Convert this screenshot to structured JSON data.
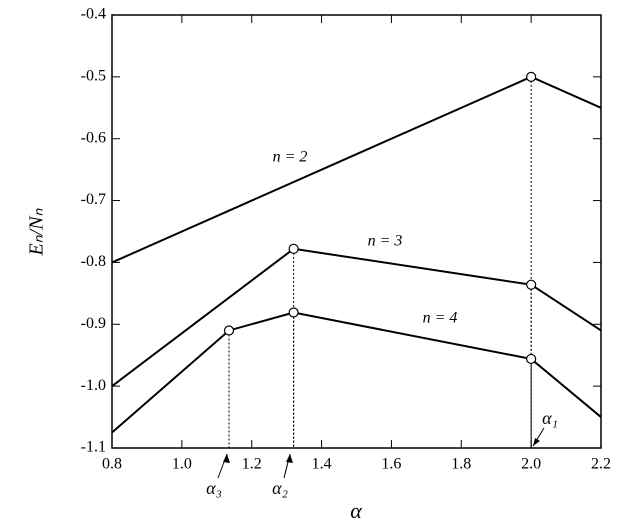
{
  "chart_data": {
    "type": "line",
    "xlabel": "α",
    "ylabel": "Eₙ/Nₙ",
    "xlim": [
      0.8,
      2.2
    ],
    "ylim": [
      -1.1,
      -0.4
    ],
    "xticks": [
      0.8,
      {
        "value": 1.0,
        "label": "1.0"
      },
      1.2,
      1.4,
      1.6,
      1.8,
      {
        "value": 2.0,
        "label": "2.0"
      },
      2.2
    ],
    "yticks": [
      -0.4,
      -0.5,
      -0.6,
      -0.7,
      -0.8,
      -0.9,
      {
        "value": -1.0,
        "label": "-1.0"
      },
      -1.1
    ],
    "color": "#000000",
    "series": [
      {
        "name": "n = 2",
        "x": [
          0.8,
          2.0,
          2.2
        ],
        "values": [
          -0.8,
          -0.5,
          -0.55
        ]
      },
      {
        "name": "n = 3",
        "x": [
          0.8,
          1.32,
          2.0,
          2.2
        ],
        "values": [
          -1.0,
          -0.778,
          -0.836,
          -0.91
        ]
      },
      {
        "name": "n = 4",
        "x": [
          0.8,
          1.135,
          1.32,
          2.0,
          2.2
        ],
        "values": [
          -1.075,
          -0.91,
          -0.881,
          -0.956,
          -1.05
        ]
      }
    ],
    "annotations": [
      "α₁",
      "α₂",
      "α₃"
    ]
  }
}
